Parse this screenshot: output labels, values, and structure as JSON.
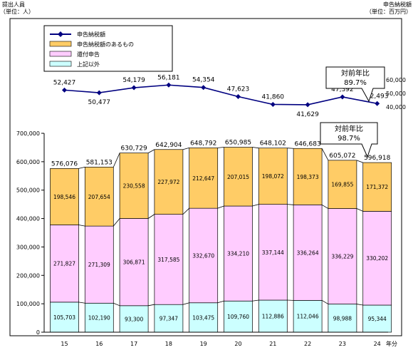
{
  "chart_data": {
    "type": "bar",
    "categories": [
      "15",
      "16",
      "17",
      "18",
      "19",
      "20",
      "21",
      "22",
      "23",
      "24"
    ],
    "left_axis_title_line1": "提出人員",
    "left_axis_title_line2": "（単位：人）",
    "right_axis_title_line1": "申告納税額",
    "right_axis_title_line2": "（単位：百万円）",
    "x_unit_label": "年分",
    "y_ticks": [
      "0",
      "100,000",
      "200,000",
      "300,000",
      "400,000",
      "500,000",
      "600,000",
      "700,000"
    ],
    "y_tick_values": [
      0,
      100000,
      200000,
      300000,
      400000,
      500000,
      600000,
      700000
    ],
    "ylim": [
      0,
      700000
    ],
    "right_ticks": [
      "40,000",
      "50,000",
      "60,000"
    ],
    "right_tick_values": [
      40000,
      50000,
      60000
    ],
    "right_ylim": [
      40000,
      60000
    ],
    "stacked": true,
    "series": [
      {
        "name": "上記以外",
        "color": "#ccffff",
        "values": [
          105703,
          102190,
          93300,
          97347,
          103475,
          109760,
          112886,
          112046,
          98988,
          95344
        ]
      },
      {
        "name": "還付申告",
        "color": "#ffccff",
        "values": [
          271827,
          271309,
          306871,
          317585,
          332670,
          334210,
          337144,
          336264,
          336229,
          330202
        ]
      },
      {
        "name": "申告納税額のあるもの",
        "color": "#ffcc66",
        "values": [
          198546,
          207654,
          230558,
          227972,
          212647,
          207015,
          198072,
          198373,
          169855,
          171372
        ]
      }
    ],
    "bar_labels": {
      "上記以外": [
        "105,703",
        "102,190",
        "93,300",
        "97,347",
        "103,475",
        "109,760",
        "112,886",
        "112,046",
        "98,988",
        "95,344"
      ],
      "還付申告": [
        "271,827",
        "271,309",
        "306,871",
        "317,585",
        "332,670",
        "334,210",
        "337,144",
        "336,264",
        "336,229",
        "330,202"
      ],
      "申告納税額のあるもの": [
        "198,546",
        "207,654",
        "230,558",
        "227,972",
        "212,647",
        "207,015",
        "198,072",
        "198,373",
        "169,855",
        "171,372"
      ]
    },
    "totals": [
      576076,
      581153,
      630729,
      642904,
      648792,
      650985,
      648102,
      646683,
      605072,
      596918
    ],
    "total_labels": [
      "576,076",
      "581,153",
      "630,729",
      "642,904",
      "648,792",
      "650,985",
      "648,102",
      "646,683",
      "605,072",
      "596,918"
    ],
    "line": {
      "name": "申告納税額",
      "color": "#000080",
      "values": [
        52427,
        50477,
        54179,
        56181,
        54354,
        47623,
        41860,
        41629,
        47392,
        42493
      ],
      "labels": [
        "52,427",
        "50,477",
        "54,179",
        "56,181",
        "54,354",
        "47,623",
        "41,860",
        "41,629",
        "47,392",
        "42,493"
      ]
    },
    "legend_order": [
      "申告納税額",
      "申告納税額のあるもの",
      "還付申告",
      "上記以外"
    ],
    "legend_placement": "top-left",
    "callout_line": {
      "line1": "対前年比",
      "line2": "89.7%"
    },
    "callout_bar": {
      "line1": "対前年比",
      "line2": "98.7%"
    }
  }
}
